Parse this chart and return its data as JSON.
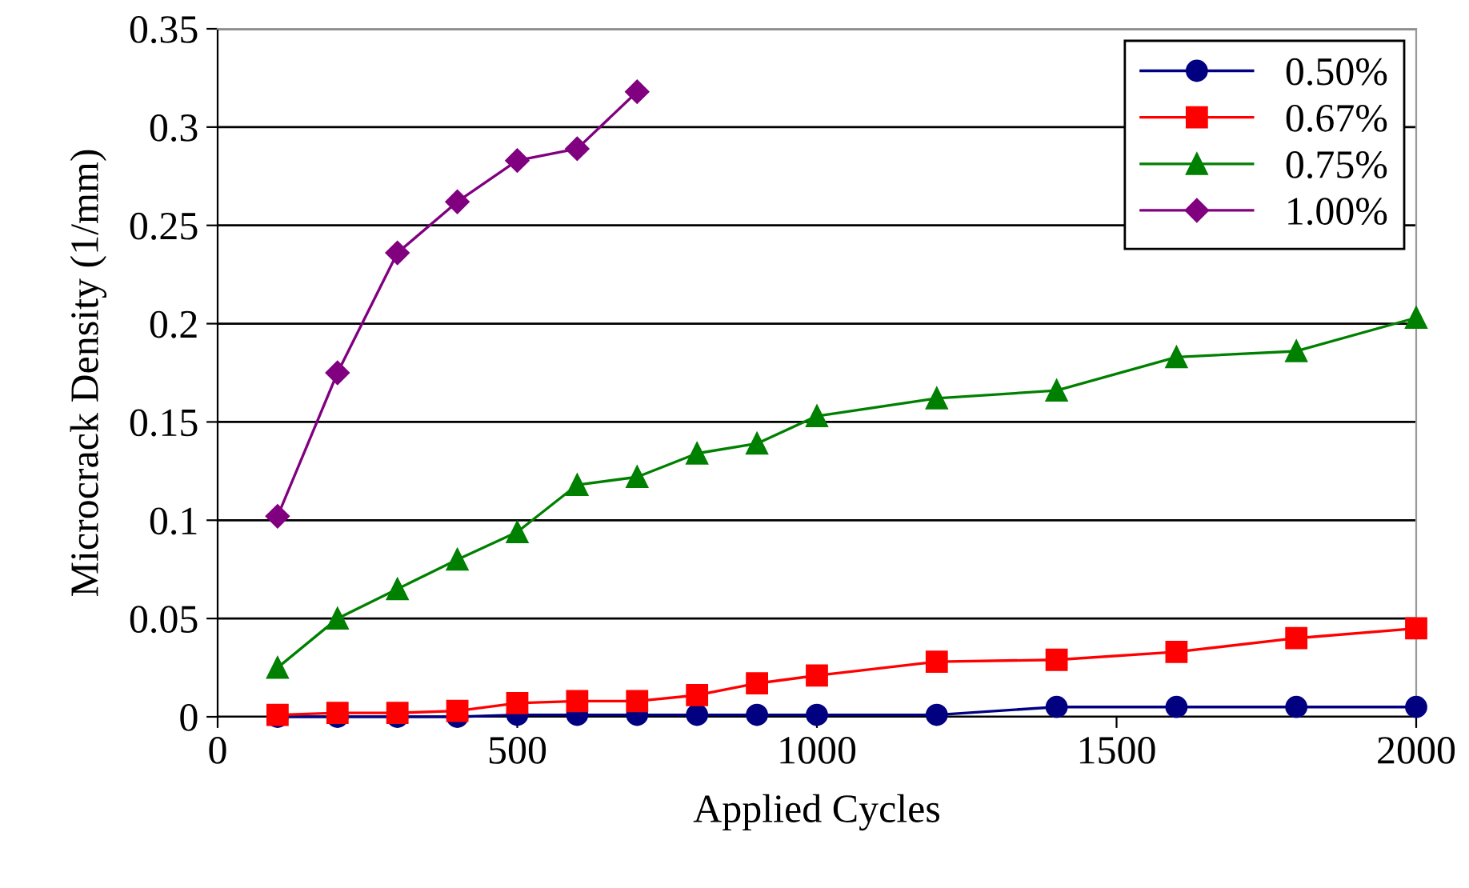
{
  "chart_data": {
    "type": "line",
    "xlabel": "Applied Cycles",
    "ylabel": "Microcrack Density (1/mm)",
    "xlim": [
      0,
      2000
    ],
    "xticks": [
      0,
      500,
      1000,
      1500,
      2000
    ],
    "ylim": [
      0,
      0.35
    ],
    "yticks": [
      0,
      0.05,
      0.1,
      0.15,
      0.2,
      0.25,
      0.3,
      0.35
    ],
    "grid": "y",
    "legend": "top right",
    "line_style": "solid",
    "series": [
      {
        "name": "0.50%",
        "color": "#000080",
        "marker": "circle",
        "x": [
          100,
          200,
          300,
          400,
          500,
          600,
          700,
          800,
          900,
          1000,
          1200,
          1400,
          1600,
          1800,
          2000
        ],
        "values": [
          0,
          0,
          0,
          0,
          0.001,
          0.001,
          0.001,
          0.001,
          0.001,
          0.001,
          0.001,
          0.005,
          0.005,
          0.005,
          0.005
        ]
      },
      {
        "name": "0.67%",
        "color": "#ff0000",
        "marker": "square",
        "x": [
          100,
          200,
          300,
          400,
          500,
          600,
          700,
          800,
          900,
          1000,
          1200,
          1400,
          1600,
          1800,
          2000
        ],
        "values": [
          0.001,
          0.002,
          0.002,
          0.003,
          0.007,
          0.008,
          0.008,
          0.011,
          0.017,
          0.021,
          0.028,
          0.029,
          0.033,
          0.04,
          0.045
        ]
      },
      {
        "name": "0.75%",
        "color": "#008000",
        "marker": "triangle",
        "x": [
          100,
          200,
          300,
          400,
          500,
          600,
          700,
          800,
          900,
          1000,
          1200,
          1400,
          1600,
          1800,
          2000
        ],
        "values": [
          0.025,
          0.05,
          0.065,
          0.08,
          0.094,
          0.118,
          0.122,
          0.134,
          0.139,
          0.153,
          0.162,
          0.166,
          0.183,
          0.186,
          0.203
        ]
      },
      {
        "name": "1.00%",
        "color": "#800080",
        "marker": "diamond",
        "x": [
          100,
          200,
          300,
          400,
          500,
          600,
          700
        ],
        "values": [
          0.102,
          0.175,
          0.236,
          0.262,
          0.283,
          0.289,
          0.318
        ]
      }
    ]
  }
}
